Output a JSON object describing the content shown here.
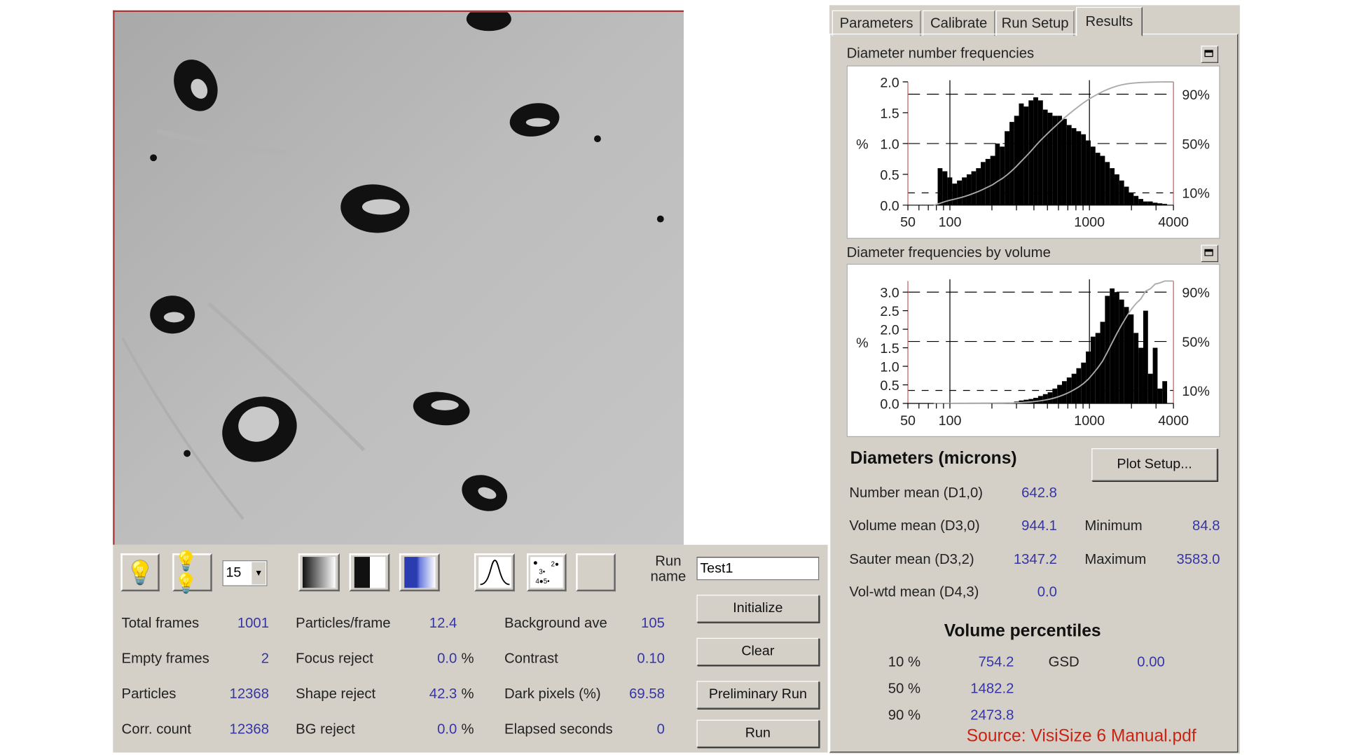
{
  "image_panel": {
    "name": "particle-image"
  },
  "toolbar": {
    "frames_value": "15",
    "run_name_label": "Run name",
    "run_name_value": "Test1",
    "icons": [
      "lightbulb-icon",
      "multi-lightbulb-icon",
      "gradient-icon",
      "black-white-icon",
      "blue-gradient-icon",
      "gaussian-curve-icon",
      "numbered-particles-icon"
    ]
  },
  "stats": {
    "col1": [
      {
        "label": "Total frames",
        "value": "1001"
      },
      {
        "label": "Empty frames",
        "value": "2"
      },
      {
        "label": "Particles",
        "value": "12368"
      },
      {
        "label": "Corr. count",
        "value": "12368"
      }
    ],
    "col2": [
      {
        "label": "Particles/frame",
        "value": "12.4",
        "unit": ""
      },
      {
        "label": "Focus reject",
        "value": "0.0",
        "unit": "%"
      },
      {
        "label": "Shape reject",
        "value": "42.3",
        "unit": "%"
      },
      {
        "label": "BG reject",
        "value": "0.0",
        "unit": "%"
      }
    ],
    "col3": [
      {
        "label": "Background ave",
        "value": "105"
      },
      {
        "label": "Contrast",
        "value": "0.10"
      },
      {
        "label": "Dark pixels (%)",
        "value": "69.58"
      },
      {
        "label": "Elapsed seconds",
        "value": "0"
      }
    ]
  },
  "buttons": {
    "initialize": "Initialize",
    "clear": "Clear",
    "preliminary": "Preliminary Run",
    "run": "Run",
    "plot_setup": "Plot Setup..."
  },
  "tabs": [
    {
      "label": "Parameters",
      "active": false
    },
    {
      "label": "Calibrate",
      "active": false
    },
    {
      "label": "Run Setup",
      "active": false
    },
    {
      "label": "Results",
      "active": true
    }
  ],
  "diameters": {
    "title": "Diameters (microns)",
    "rows": [
      {
        "label": "Number mean (D1,0)",
        "value": "642.8"
      },
      {
        "label": "Volume mean (D3,0)",
        "value": "944.1"
      },
      {
        "label": "Sauter mean  (D3,2)",
        "value": "1347.2"
      },
      {
        "label": "Vol-wtd mean (D4,3)",
        "value": "0.0"
      }
    ],
    "minimum": {
      "label": "Minimum",
      "value": "84.8"
    },
    "maximum": {
      "label": "Maximum",
      "value": "3583.0"
    }
  },
  "percentiles": {
    "title": "Volume percentiles",
    "rows": [
      {
        "label": "10 %",
        "value": "754.2"
      },
      {
        "label": "50 %",
        "value": "1482.2"
      },
      {
        "label": "90 %",
        "value": "2473.8"
      }
    ],
    "gsd": {
      "label": "GSD",
      "value": "0.00"
    }
  },
  "source_note": "Source: VisiSize 6 Manual.pdf",
  "colors": {
    "panel": "#d4d0c8",
    "value_text": "#3535a5",
    "source_text": "#cc2211",
    "axis_border": "#c06060",
    "cumulative_curve": "#aaaaaa"
  },
  "chart_data": [
    {
      "type": "bar",
      "title": "Diameter number frequencies",
      "ylabel": "%",
      "x_scale": "log",
      "xlim": [
        50,
        4000
      ],
      "ylim": [
        0,
        2.0
      ],
      "x_ticks": [
        "50",
        "100",
        "1000",
        "4000"
      ],
      "y_ticks": [
        "0.0",
        "0.5",
        "1.0",
        "1.5",
        "2.0"
      ],
      "right_ticks": [
        {
          "label": "10%",
          "y": 0.2
        },
        {
          "label": "50%",
          "y": 1.0
        },
        {
          "label": "90%",
          "y": 1.8
        }
      ],
      "x": [
        85,
        92,
        100,
        108,
        117,
        127,
        137,
        148,
        160,
        173,
        187,
        203,
        219,
        237,
        257,
        278,
        300,
        325,
        352,
        381,
        412,
        446,
        483,
        522,
        565,
        611,
        661,
        716,
        774,
        838,
        906,
        981,
        1061,
        1148,
        1242,
        1344,
        1455,
        1574,
        1703,
        1843,
        1994,
        2158,
        2335,
        2527,
        2734,
        2958,
        3201,
        3464
      ],
      "values": [
        0.6,
        0.55,
        0.45,
        0.35,
        0.4,
        0.45,
        0.5,
        0.55,
        0.6,
        0.7,
        0.75,
        0.8,
        1.0,
        0.95,
        1.2,
        1.35,
        1.45,
        1.65,
        1.6,
        1.7,
        1.75,
        1.7,
        1.55,
        1.5,
        1.45,
        1.45,
        1.4,
        1.3,
        1.25,
        1.2,
        1.15,
        1.05,
        0.95,
        0.85,
        0.8,
        0.7,
        0.6,
        0.5,
        0.4,
        0.3,
        0.2,
        0.15,
        0.1,
        0.06,
        0.06,
        0.04,
        0.03,
        0.02
      ],
      "cumulative_curve": true,
      "grid": "dashed horizontal at percentiles, vertical at 100 and 1000"
    },
    {
      "type": "bar",
      "title": "Diameter frequencies by volume",
      "ylabel": "%",
      "x_scale": "log",
      "xlim": [
        50,
        4000
      ],
      "ylim": [
        0,
        3.3
      ],
      "x_ticks": [
        "50",
        "100",
        "1000",
        "4000"
      ],
      "y_ticks": [
        "0.0",
        "0.5",
        "1.0",
        "1.5",
        "2.0",
        "2.5",
        "3.0"
      ],
      "right_ticks": [
        {
          "label": "10%",
          "y": 0.35
        },
        {
          "label": "50%",
          "y": 1.67
        },
        {
          "label": "90%",
          "y": 3.0
        }
      ],
      "x": [
        85,
        92,
        100,
        108,
        117,
        127,
        137,
        148,
        160,
        173,
        187,
        203,
        219,
        237,
        257,
        278,
        300,
        325,
        352,
        381,
        412,
        446,
        483,
        522,
        565,
        611,
        661,
        716,
        774,
        838,
        906,
        981,
        1061,
        1148,
        1242,
        1344,
        1455,
        1574,
        1703,
        1843,
        1994,
        2158,
        2335,
        2527,
        2734,
        2958,
        3201,
        3464
      ],
      "values": [
        0.01,
        0.01,
        0.01,
        0.01,
        0.01,
        0.01,
        0.01,
        0.01,
        0.01,
        0.01,
        0.01,
        0.01,
        0.01,
        0.01,
        0.01,
        0.01,
        0.05,
        0.08,
        0.1,
        0.12,
        0.15,
        0.2,
        0.25,
        0.3,
        0.4,
        0.5,
        0.6,
        0.7,
        0.8,
        0.95,
        1.1,
        1.4,
        1.8,
        1.9,
        2.2,
        2.9,
        3.1,
        3.0,
        2.8,
        2.6,
        2.4,
        1.9,
        1.5,
        2.5,
        0.8,
        1.5,
        0.4,
        0.6
      ],
      "cumulative_curve": true,
      "grid": "dashed horizontal at percentiles, vertical at 100 and 1000"
    }
  ]
}
